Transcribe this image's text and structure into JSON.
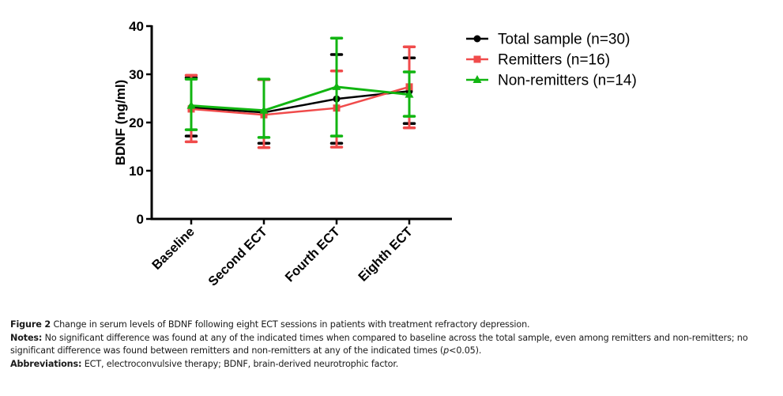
{
  "chart_data": {
    "type": "line",
    "title": "",
    "xlabel": "",
    "ylabel": "BDNF (ng/ml)",
    "ylim": [
      0,
      40
    ],
    "yticks": [
      0,
      10,
      20,
      30,
      40
    ],
    "categories": [
      "Baseline",
      "Second ECT",
      "Fourth ECT",
      "Eighth ECT"
    ],
    "grid": false,
    "legend_position": "top-right",
    "series": [
      {
        "name": "Total sample (n=30)",
        "color": "#000000",
        "marker": "circle",
        "values": [
          23.1,
          22.1,
          24.9,
          26.5
        ],
        "error_upper": [
          29.3,
          28.9,
          34.1,
          33.4
        ],
        "error_lower": [
          17.2,
          15.7,
          15.7,
          19.8
        ]
      },
      {
        "name": "Remitters (n=16)",
        "color": "#f04b4b",
        "marker": "square",
        "values": [
          22.8,
          21.6,
          23.0,
          27.4
        ],
        "error_upper": [
          29.8,
          28.9,
          30.7,
          35.7
        ],
        "error_lower": [
          16.0,
          14.8,
          14.9,
          18.9
        ]
      },
      {
        "name": "Non-remitters (n=14)",
        "color": "#11b511",
        "marker": "triangle",
        "values": [
          23.5,
          22.5,
          27.4,
          25.8
        ],
        "error_upper": [
          29.0,
          29.0,
          37.5,
          30.5
        ],
        "error_lower": [
          18.5,
          16.9,
          17.2,
          21.3
        ]
      }
    ]
  },
  "caption": {
    "figure_label": "Figure 2",
    "figure_text": " Change in serum levels of BDNF following eight ECT sessions in patients with treatment refractory depression.",
    "notes_label": "Notes:",
    "notes_text_1": " No significant difference was found at any of the indicated times when compared to baseline across the total sample, even among remitters and non-remitters; no significant difference was found between remitters and non-remitters at any of the indicated times (",
    "notes_p": "p",
    "notes_text_2": "<0.05).",
    "abbr_label": "Abbreviations:",
    "abbr_text": " ECT, electroconvulsive therapy; BDNF, brain-derived neurotrophic factor."
  }
}
